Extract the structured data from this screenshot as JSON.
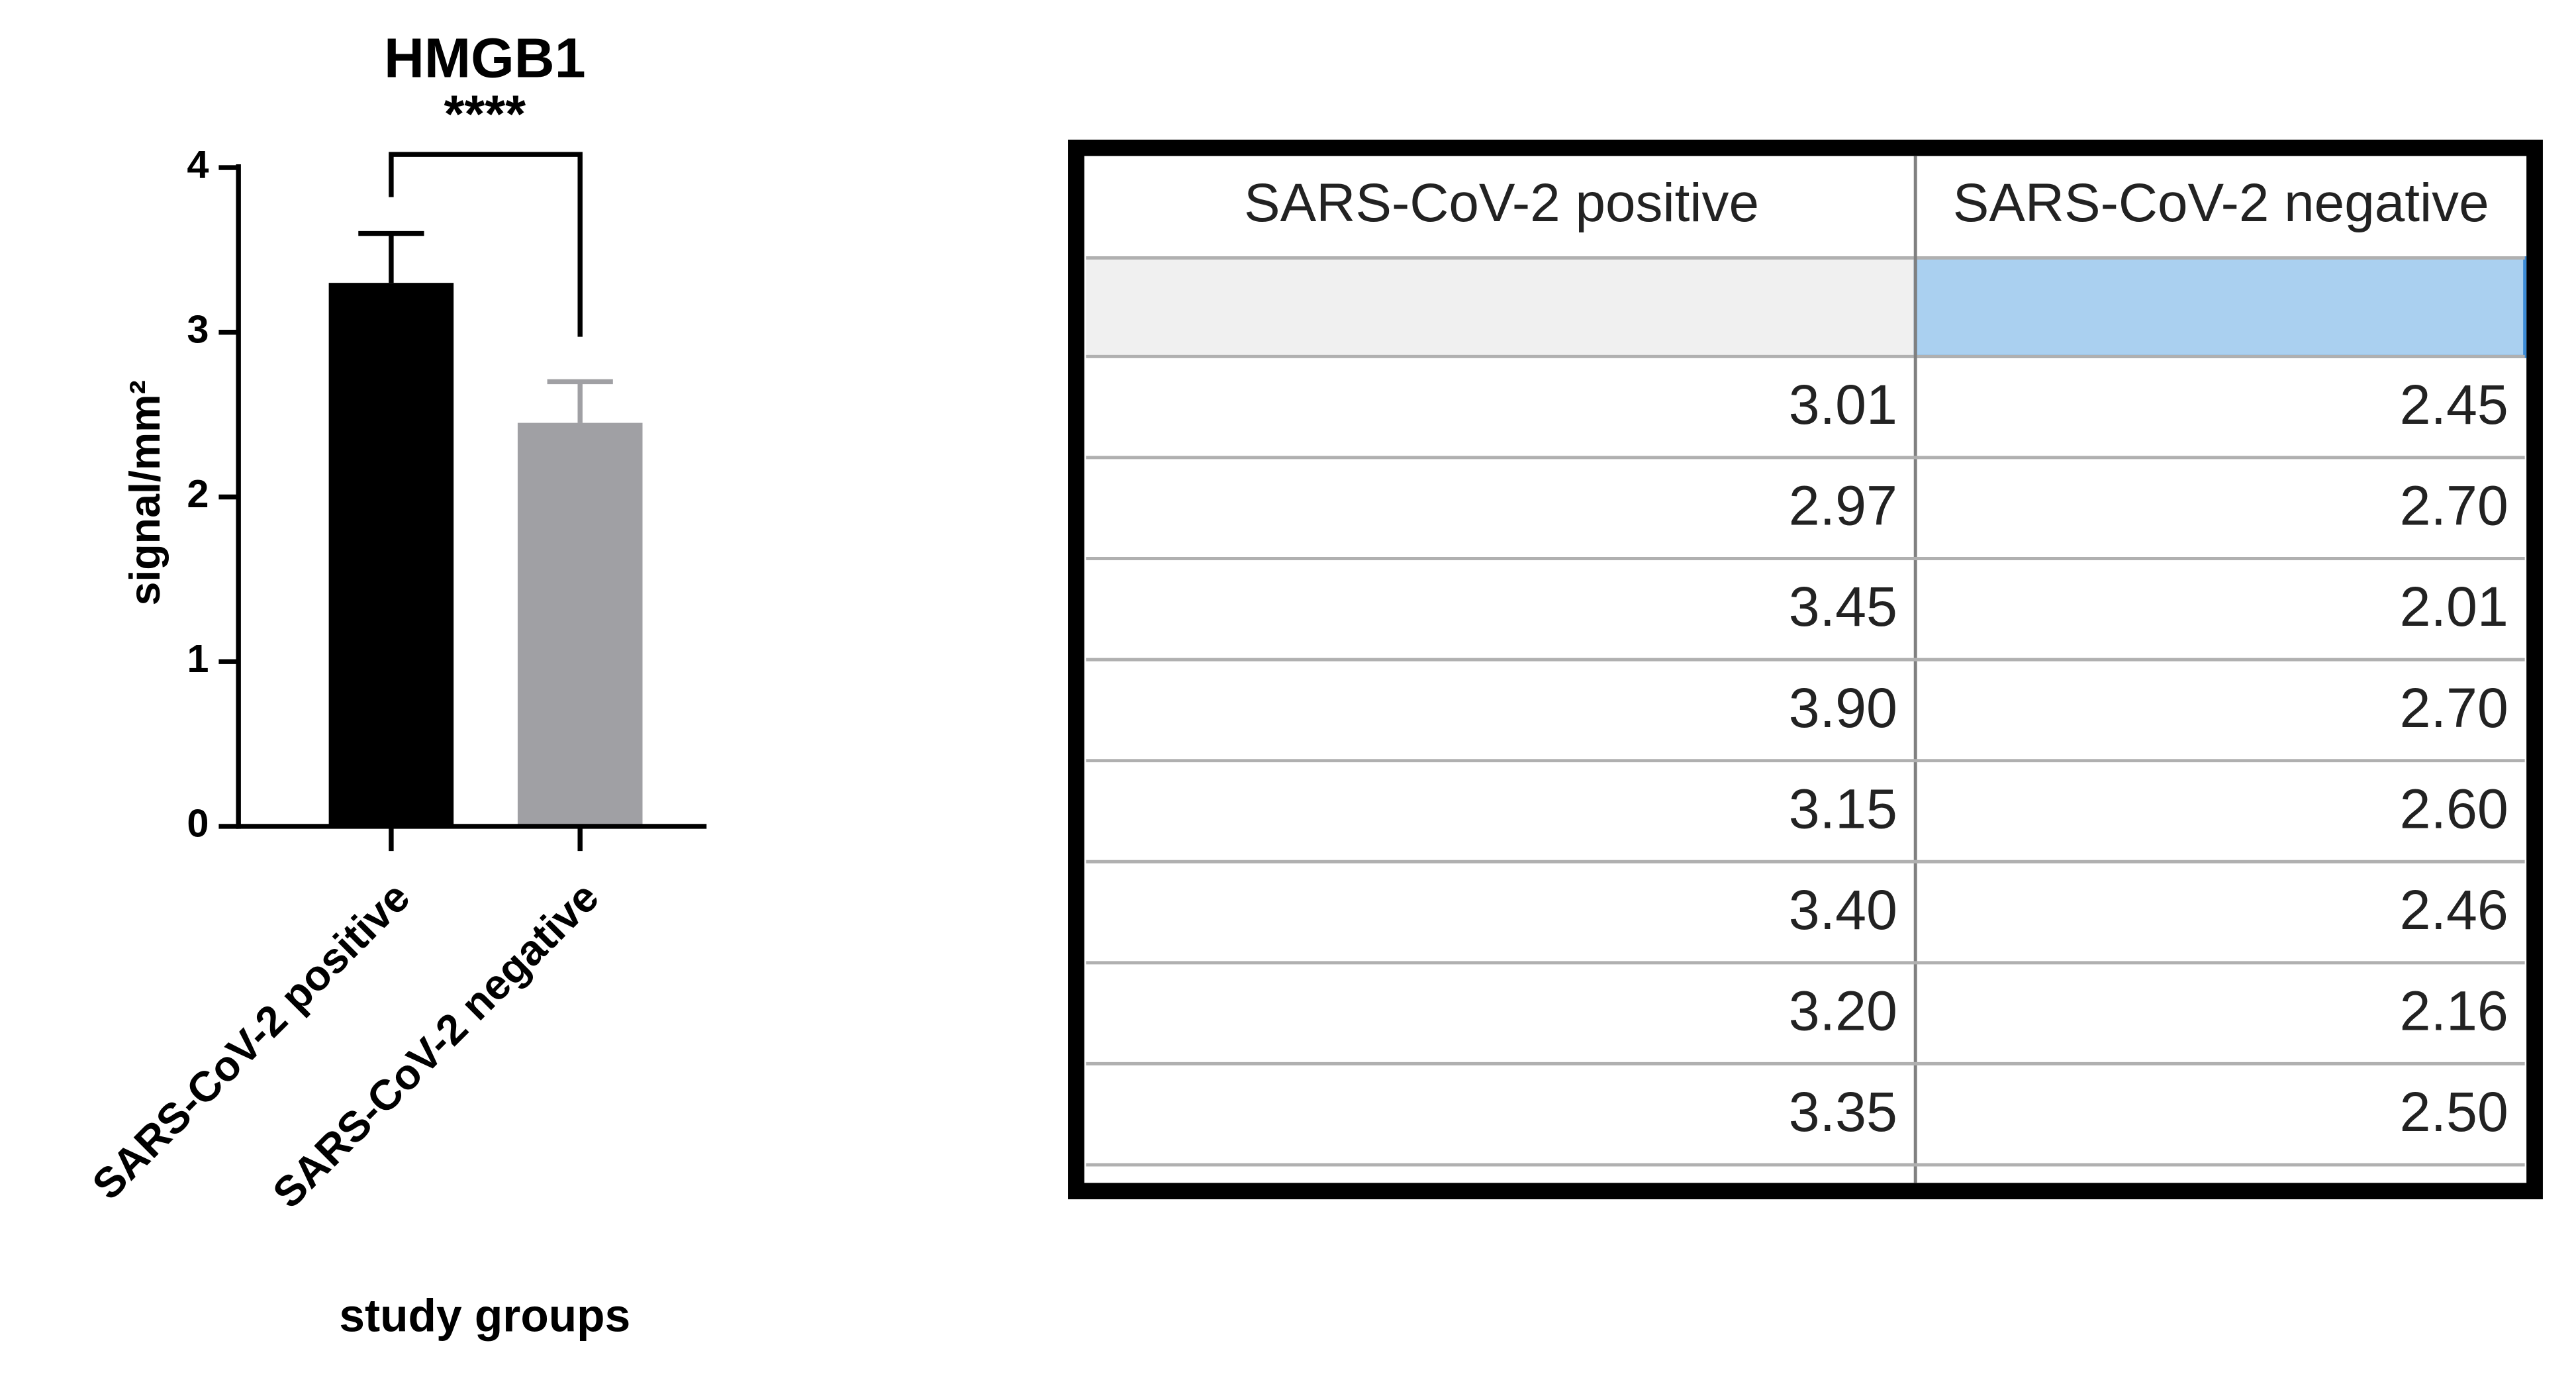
{
  "chart_data": {
    "type": "bar",
    "title": "HMGB1",
    "significance": "****",
    "categories": [
      "SARS-CoV-2 positive",
      "SARS-CoV-2 negative"
    ],
    "values": [
      3.3,
      2.45
    ],
    "errors": [
      0.3,
      0.25
    ],
    "colors": [
      "#000000",
      "#a0a0a4"
    ],
    "ylim": [
      0,
      4
    ],
    "yticks": [
      0,
      1,
      2,
      3,
      4
    ],
    "y_label": "signal/mm²",
    "x_label": "study groups"
  },
  "table": {
    "columns": [
      "SARS-CoV-2 positive",
      "SARS-CoV-2 negative"
    ],
    "rows": [
      [
        "3.01",
        "2.45"
      ],
      [
        "2.97",
        "2.70"
      ],
      [
        "3.45",
        "2.01"
      ],
      [
        "3.90",
        "2.70"
      ],
      [
        "3.15",
        "2.60"
      ],
      [
        "3.40",
        "2.46"
      ],
      [
        "3.20",
        "2.16"
      ],
      [
        "3.35",
        "2.50"
      ]
    ]
  }
}
